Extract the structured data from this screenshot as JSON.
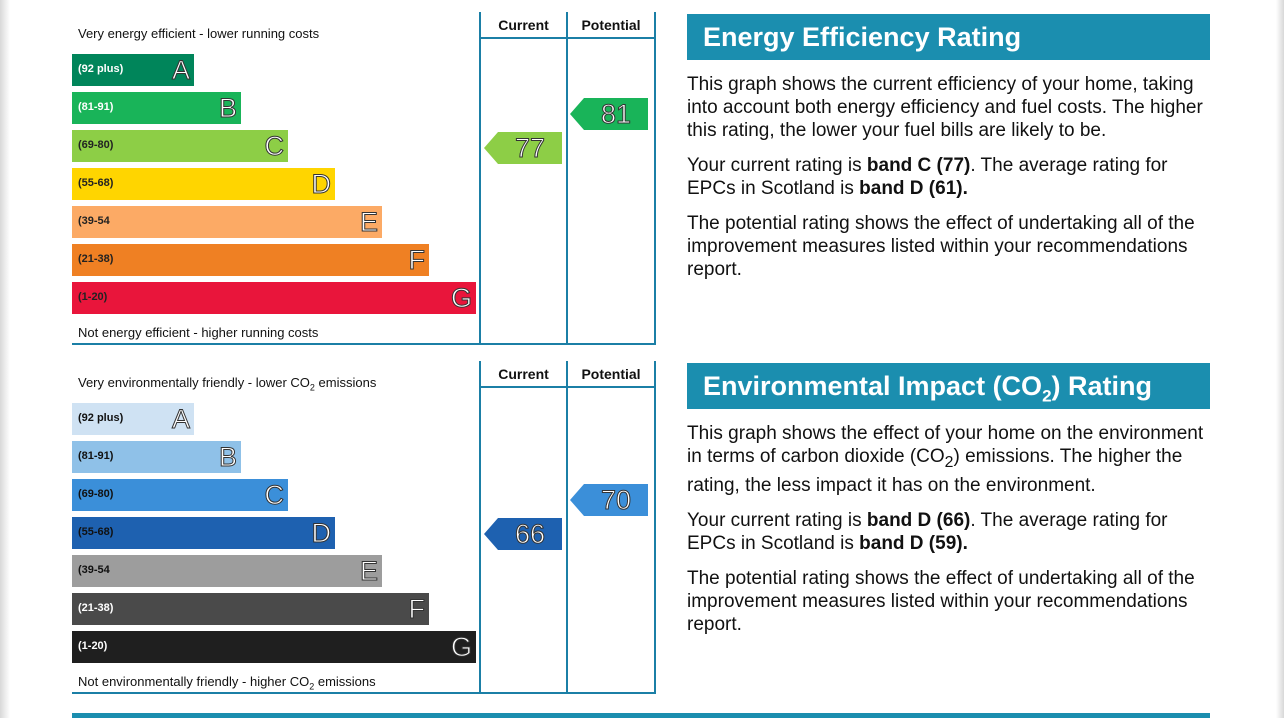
{
  "chart_data": [
    {
      "type": "bar",
      "columns": [
        "Current",
        "Potential"
      ],
      "caption_top": "Very energy efficient - lower running costs",
      "caption_bottom": "Not energy efficient - higher running costs",
      "bands": [
        {
          "letter": "A",
          "range": "(92 plus)",
          "color": "#00855a",
          "text_color": "#ffffff",
          "min": 92
        },
        {
          "letter": "B",
          "range": "(81-91)",
          "color": "#19b459",
          "text_color": "#ffffff",
          "min": 81
        },
        {
          "letter": "C",
          "range": "(69-80)",
          "color": "#8dce46",
          "text_color": "#222222",
          "min": 69
        },
        {
          "letter": "D",
          "range": "(55-68)",
          "color": "#ffd500",
          "text_color": "#222222",
          "min": 55
        },
        {
          "letter": "E",
          "range": "(39-54",
          "color": "#fcaa65",
          "text_color": "#222222",
          "min": 39
        },
        {
          "letter": "F",
          "range": "(21-38)",
          "color": "#ef8023",
          "text_color": "#222222",
          "min": 21
        },
        {
          "letter": "G",
          "range": "(1-20)",
          "color": "#e9153b",
          "text_color": "#222222",
          "min": 1
        }
      ],
      "current": {
        "value": 77,
        "color": "#8dce46"
      },
      "potential": {
        "value": 81,
        "color": "#19b459"
      }
    },
    {
      "type": "bar",
      "columns": [
        "Current",
        "Potential"
      ],
      "caption_top": "Very environmentally friendly - lower CO",
      "caption_top_sub": "2",
      "caption_top_tail": " emissions",
      "caption_bottom": "Not environmentally friendly - higher CO",
      "caption_bottom_sub": "2",
      "caption_bottom_tail": " emissions",
      "bands": [
        {
          "letter": "A",
          "range": "(92 plus)",
          "color": "#cfe2f3",
          "text_color": "#111111",
          "min": 92
        },
        {
          "letter": "B",
          "range": "(81-91)",
          "color": "#8fc1e8",
          "text_color": "#111111",
          "min": 81
        },
        {
          "letter": "C",
          "range": "(69-80)",
          "color": "#3b8fd9",
          "text_color": "#111111",
          "min": 69
        },
        {
          "letter": "D",
          "range": "(55-68)",
          "color": "#1e61b0",
          "text_color": "#111111",
          "min": 55
        },
        {
          "letter": "E",
          "range": "(39-54",
          "color": "#9d9d9d",
          "text_color": "#111111",
          "min": 39
        },
        {
          "letter": "F",
          "range": "(21-38)",
          "color": "#4a4a4a",
          "text_color": "#ffffff",
          "min": 21
        },
        {
          "letter": "G",
          "range": "(1-20)",
          "color": "#1f1f1f",
          "text_color": "#ffffff",
          "min": 1
        }
      ],
      "current": {
        "value": 66,
        "color": "#1e61b0"
      },
      "potential": {
        "value": 70,
        "color": "#3b8fd9"
      }
    }
  ],
  "eer_info": {
    "title": "Energy Efficiency Rating",
    "p1": "This graph shows the current efficiency of your home, taking into account both energy efficiency and fuel costs. The higher this rating, the lower your fuel bills are likely to be.",
    "p2_a": "Your current rating is ",
    "p2_b": "band C (77)",
    "p2_c": ". The average rating for EPCs in Scotland is ",
    "p2_d": "band D (61).",
    "p3": "The potential rating shows the effect of undertaking all of the improvement measures listed within your recommendations report."
  },
  "eir_info": {
    "title_a": "Environmental Impact (CO",
    "title_sub": "2",
    "title_b": ") Rating",
    "p1_a": "This graph shows the effect of your home on the environment in terms of carbon dioxide (CO",
    "p1_sub": "2",
    "p1_b": ") emissions. The higher the rating, the less impact it has on the environment.",
    "p2_a": "Your current rating is ",
    "p2_b": "band D (66)",
    "p2_c": ". The average rating for EPCs in Scotland is ",
    "p2_d": "band D (59).",
    "p3": "The potential rating shows the effect of undertaking all of the improvement measures listed within your recommendations report."
  }
}
